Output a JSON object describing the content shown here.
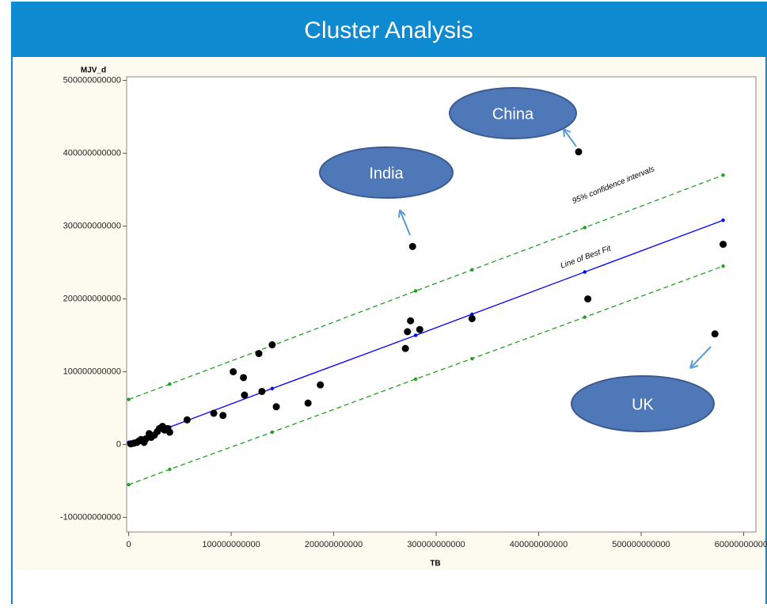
{
  "title": "Cluster Analysis",
  "chart_data": {
    "type": "scatter",
    "ylabel": "MJV_d",
    "xlabel": "TB",
    "xlim": [
      -2000000000,
      612000000000
    ],
    "ylim": [
      -120000000000,
      505000000000
    ],
    "xticks": [
      0,
      100000000000,
      200000000000,
      300000000000,
      400000000000,
      500000000000,
      600000000000
    ],
    "yticks": [
      -100000000000,
      0,
      100000000000,
      200000000000,
      300000000000,
      400000000000,
      500000000000
    ],
    "point_color": "#000000",
    "x": [
      2000000000,
      5000000000,
      8000000000,
      10000000000,
      12000000000,
      15000000000,
      17000000000,
      20000000000,
      22000000000,
      25000000000,
      28000000000,
      30000000000,
      33000000000,
      35000000000,
      38000000000,
      40000000000,
      57000000000,
      83000000000,
      92000000000,
      102000000000,
      112000000000,
      113000000000,
      127000000000,
      130000000000,
      140000000000,
      144000000000,
      175000000000,
      187000000000,
      270000000000,
      272000000000,
      275000000000,
      277000000000,
      284000000000,
      335000000000,
      439000000000,
      448000000000,
      572000000000,
      580000000000
    ],
    "values": [
      1000000000,
      2000000000,
      3000000000,
      5000000000,
      7000000000,
      3000000000,
      8000000000,
      15000000000,
      10000000000,
      13000000000,
      18000000000,
      22000000000,
      25000000000,
      20000000000,
      22000000000,
      17000000000,
      34000000000,
      43000000000,
      40000000000,
      100000000000,
      92000000000,
      68000000000,
      125000000000,
      73000000000,
      137000000000,
      52000000000,
      57000000000,
      82000000000,
      132000000000,
      155000000000,
      170000000000,
      272000000000,
      158000000000,
      173000000000,
      402000000000,
      200000000000,
      152000000000,
      275000000000
    ],
    "lines": [
      {
        "color": "#0000ff",
        "dashed": false,
        "x": [
          0,
          40000000000,
          140000000000,
          280000000000,
          335000000000,
          445000000000,
          580000000000
        ],
        "values": [
          3000000000,
          24000000000,
          77000000000,
          150000000000,
          179000000000,
          237000000000,
          308000000000
        ]
      },
      {
        "color": "#22a022",
        "dashed": true,
        "x": [
          0,
          40000000000,
          140000000000,
          280000000000,
          335000000000,
          445000000000,
          580000000000
        ],
        "values": [
          62000000000,
          83000000000,
          136000000000,
          211000000000,
          240000000000,
          298000000000,
          370000000000
        ]
      },
      {
        "color": "#22a022",
        "dashed": true,
        "x": [
          0,
          40000000000,
          140000000000,
          280000000000,
          335000000000,
          445000000000,
          580000000000
        ],
        "values": [
          -55000000000,
          -34000000000,
          17000000000,
          90000000000,
          118000000000,
          175000000000,
          245000000000
        ]
      }
    ],
    "annotations": [
      "95% confidence intervals",
      "Line of Best Fit",
      "China",
      "India",
      "UK"
    ]
  }
}
